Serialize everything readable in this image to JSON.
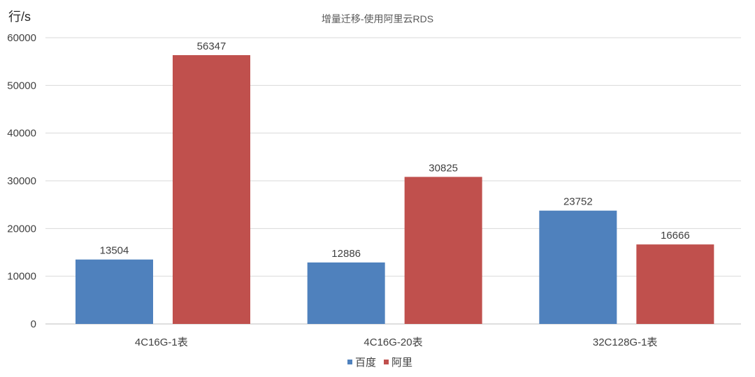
{
  "chart_data": {
    "type": "bar",
    "title": "增量迁移-使用阿里云RDS",
    "ylabel": "行/s",
    "xlabel": "",
    "categories": [
      "4C16G-1表",
      "4C16G-20表",
      "32C128G-1表"
    ],
    "series": [
      {
        "name": "百度",
        "color": "#4F81BD",
        "values": [
          13504,
          12886,
          23752
        ]
      },
      {
        "name": "阿里",
        "color": "#C0504D",
        "values": [
          56347,
          30825,
          16666
        ]
      }
    ],
    "ylim": [
      0,
      60000
    ],
    "yticks": [
      0,
      10000,
      20000,
      30000,
      40000,
      50000,
      60000
    ],
    "grid": true,
    "legend": "bottom-center",
    "data_labels": true
  }
}
